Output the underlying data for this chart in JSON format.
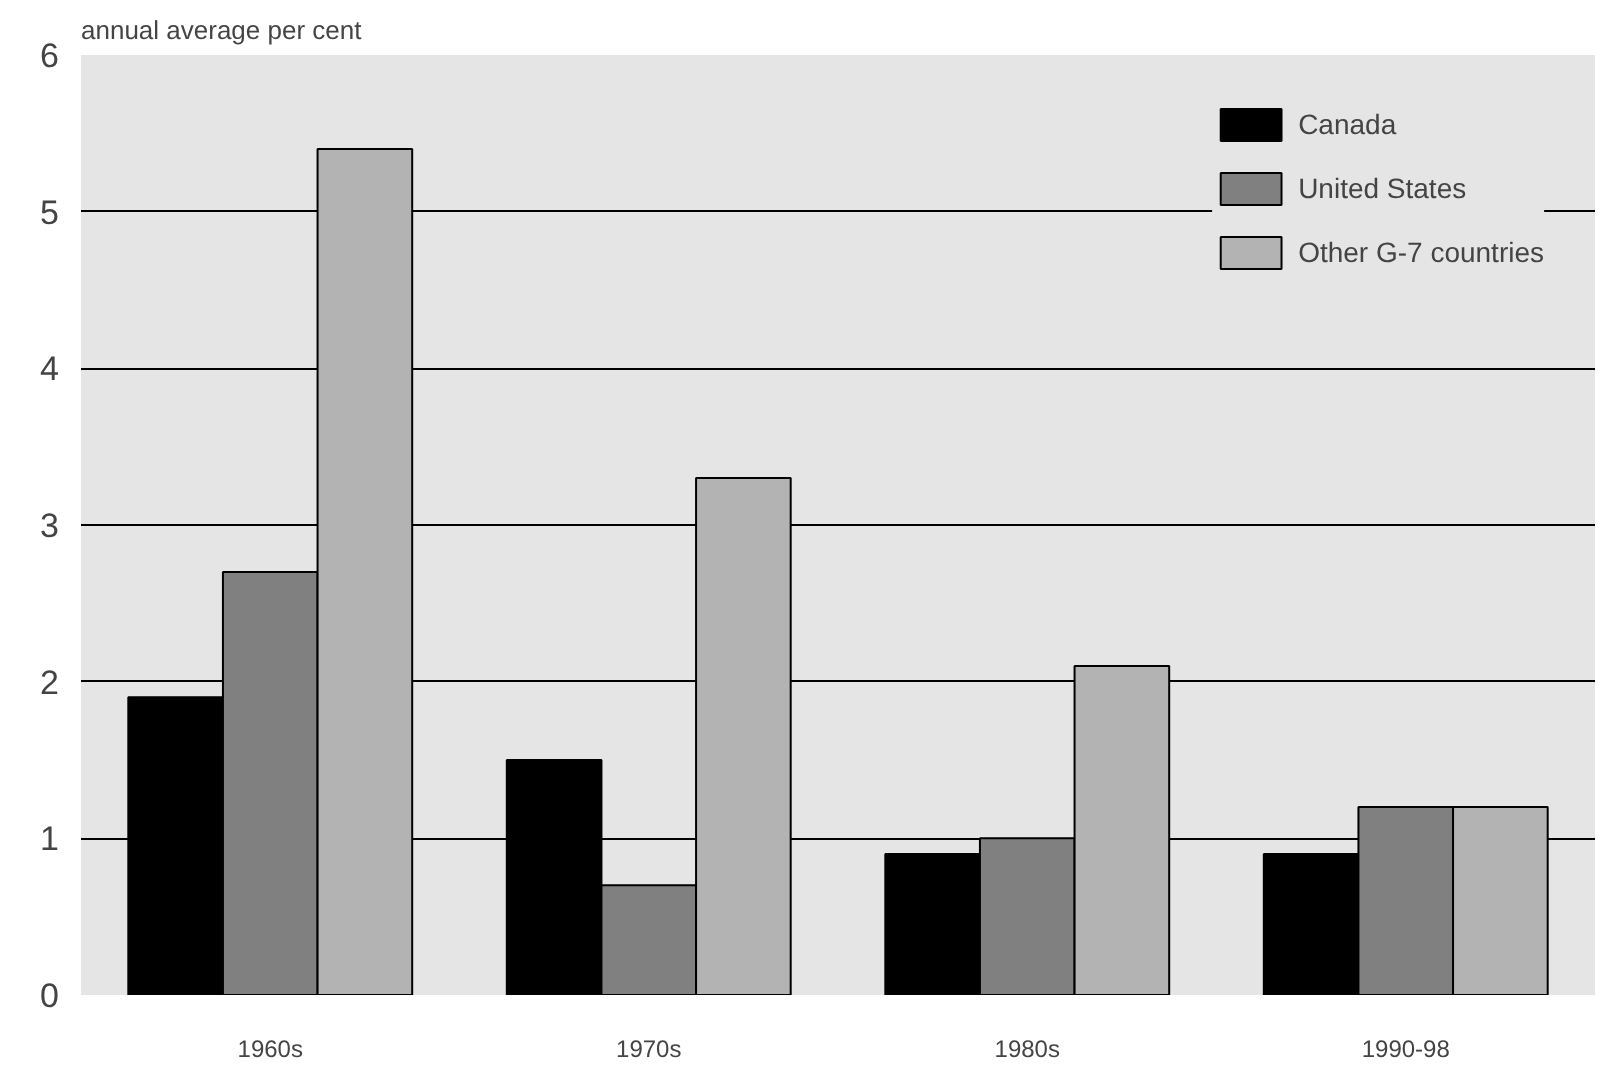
{
  "chart_data": {
    "type": "bar",
    "ylabel": "annual average per cent",
    "categories": [
      "1960s",
      "1970s",
      "1980s",
      "1990-98"
    ],
    "series": [
      {
        "name": "Canada",
        "color": "#000000",
        "values": [
          1.9,
          1.5,
          0.9,
          0.9
        ]
      },
      {
        "name": "United States",
        "color": "#808080",
        "values": [
          2.7,
          0.7,
          1.0,
          1.2
        ]
      },
      {
        "name": "Other G-7 countries",
        "color": "#b3b3b3",
        "values": [
          5.4,
          3.3,
          2.1,
          1.2
        ]
      }
    ],
    "ylim": [
      0,
      6
    ],
    "yticks": [
      0,
      1,
      2,
      3,
      4,
      5,
      6
    ],
    "grid": "y",
    "legend": "top right"
  }
}
